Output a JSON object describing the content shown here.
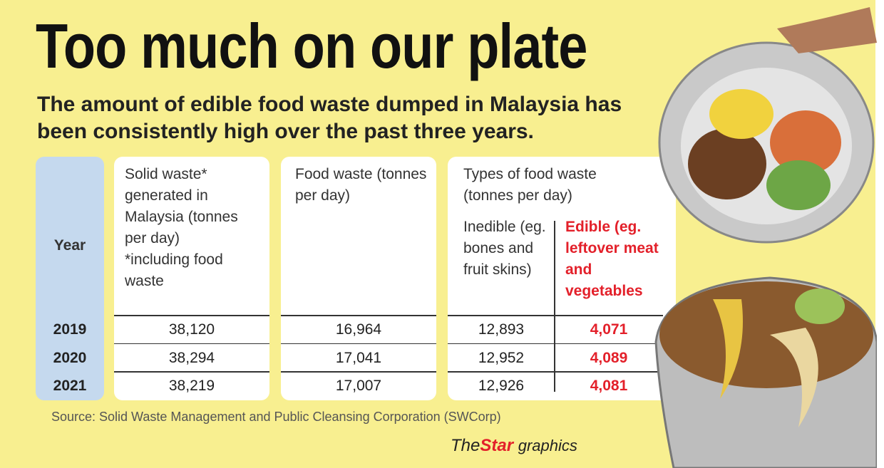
{
  "header": {
    "title": "Too much on our plate",
    "subtitle": "The amount of edible food waste dumped in Malaysia has been consistently high over the past three years."
  },
  "table": {
    "columns": {
      "year": "Year",
      "solid": "Solid waste* generated in Malaysia (tonnes per day)",
      "solid_note": "*including food waste",
      "food": "Food waste (tonnes per day)",
      "types": "Types of food waste (tonnes per day)",
      "inedible": "Inedible (eg. bones and fruit skins)",
      "edible": "Edible (eg. leftover meat and vegetables"
    },
    "rows": [
      [
        "2019",
        "38,120",
        "16,964",
        "12,893",
        "4,071"
      ],
      [
        "2020",
        "38,294",
        "17,041",
        "12,952",
        "4,089"
      ],
      [
        "2021",
        "38,219",
        "17,007",
        "12,926",
        "4,081"
      ]
    ]
  },
  "footer": {
    "source": "Source: Solid Waste Management and Public Cleansing Corporation (SWCorp)",
    "credit_the": "The",
    "credit_star": "Star",
    "credit_graphics": "graphics"
  }
}
